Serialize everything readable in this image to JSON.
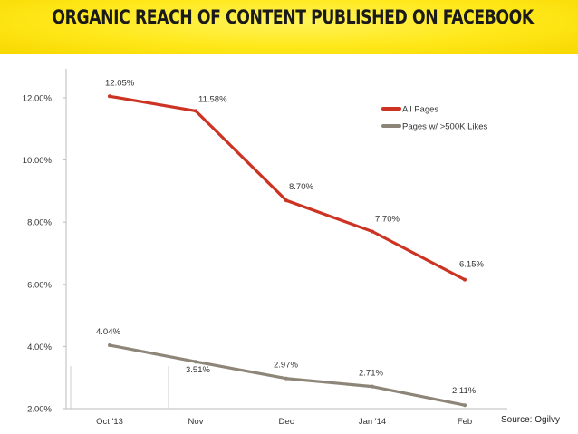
{
  "header": {
    "title": "ORGANIC REACH OF CONTENT PUBLISHED ON FACEBOOK"
  },
  "source": "Source: Ogilvy",
  "colors": {
    "header_bg": "#ffe81a",
    "all_pages": "#cc3322",
    "big_pages": "#8c8578"
  },
  "chart_data": {
    "type": "line",
    "title": "ORGANIC REACH OF CONTENT PUBLISHED ON FACEBOOK",
    "categories": [
      "Oct '13",
      "Nov",
      "Dec",
      "Jan '14",
      "Feb"
    ],
    "ylim": [
      2,
      12.5
    ],
    "yticks": [
      2,
      4,
      6,
      8,
      10,
      12
    ],
    "ytick_labels": [
      "2.00%",
      "4.00%",
      "6.00%",
      "8.00%",
      "10.00%",
      "12.00%"
    ],
    "grid": false,
    "legend": "top-right",
    "series": [
      {
        "name": "All Pages",
        "color": "#cc3322",
        "values": [
          12.05,
          11.58,
          8.7,
          7.7,
          6.15
        ],
        "labels": [
          "12.05%",
          "11.58%",
          "8.70%",
          "7.70%",
          "6.15%"
        ]
      },
      {
        "name": "Pages w/ >500K Likes",
        "color": "#8c8578",
        "values": [
          4.04,
          3.51,
          2.97,
          2.71,
          2.11
        ],
        "labels": [
          "4.04%",
          "3.51%",
          "2.97%",
          "2.71%",
          "2.11%"
        ]
      }
    ]
  }
}
